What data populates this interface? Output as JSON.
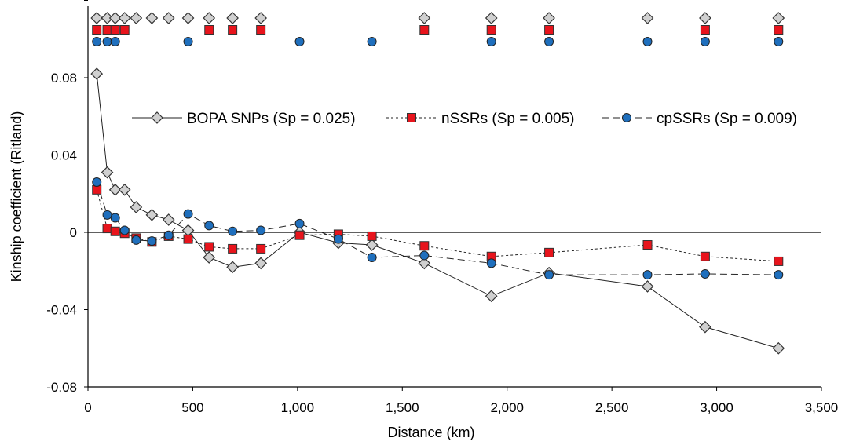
{
  "chart_data": {
    "type": "line",
    "xlabel": "Distance (km)",
    "ylabel": "Kinship coefficient (Ritland)",
    "xlim": [
      0,
      3500
    ],
    "ylim": [
      -0.08,
      0.12
    ],
    "x_ticks": [
      0,
      500,
      1000,
      1500,
      2000,
      2500,
      3000,
      3500
    ],
    "x_tick_labels": [
      "0",
      "500",
      "1,000",
      "1,500",
      "2,000",
      "2,500",
      "3,000",
      "3,500"
    ],
    "y_ticks": [
      -0.08,
      -0.04,
      0,
      0.04,
      0.08
    ],
    "y_tick_labels": [
      "-0.08",
      "-0.04",
      "0",
      "0.04",
      "0.08"
    ],
    "legend_position": "upper-right inside plot",
    "series": [
      {
        "name": "BOPA SNPs (Sp = 0.025)",
        "marker": "diamond",
        "line": "solid",
        "fill": "#d0d0d0",
        "x": [
          42,
          92,
          130,
          175,
          230,
          305,
          385,
          478,
          578,
          690,
          825,
          1010,
          1195,
          1355,
          1605,
          1925,
          2200,
          2670,
          2945,
          3295
        ],
        "y": [
          0.082,
          0.031,
          0.022,
          0.022,
          0.013,
          0.009,
          0.0065,
          0.001,
          -0.013,
          -0.018,
          -0.016,
          0.0,
          -0.0055,
          -0.0065,
          -0.016,
          -0.033,
          -0.021,
          -0.028,
          -0.049,
          -0.06
        ]
      },
      {
        "name": "nSSRs (Sp = 0.005)",
        "marker": "square",
        "line": "dotted",
        "fill": "#e8141c",
        "x": [
          42,
          92,
          130,
          175,
          230,
          305,
          385,
          478,
          578,
          690,
          825,
          1010,
          1195,
          1355,
          1605,
          1925,
          2200,
          2670,
          2945,
          3295
        ],
        "y": [
          0.022,
          0.002,
          0.0005,
          -0.0005,
          -0.003,
          -0.005,
          -0.002,
          -0.0035,
          -0.0075,
          -0.0085,
          -0.0085,
          -0.0015,
          -0.001,
          -0.002,
          -0.007,
          -0.0125,
          -0.0105,
          -0.0065,
          -0.0125,
          -0.015
        ]
      },
      {
        "name": "cpSSRs (Sp = 0.009)",
        "marker": "circle",
        "line": "dashed",
        "fill": "#1f6fbd",
        "x": [
          42,
          92,
          130,
          175,
          230,
          305,
          385,
          478,
          578,
          690,
          825,
          1010,
          1195,
          1355,
          1605,
          1925,
          2200,
          2670,
          2945,
          3295
        ],
        "y": [
          0.026,
          0.009,
          0.0075,
          0.001,
          -0.004,
          -0.0045,
          -0.0015,
          0.0095,
          0.0035,
          0.0005,
          0.001,
          0.0045,
          -0.0035,
          -0.013,
          -0.012,
          -0.016,
          -0.022,
          -0.022,
          -0.0215,
          -0.022
        ]
      }
    ],
    "significance_markers": {
      "diamond_x": [
        42,
        92,
        130,
        175,
        230,
        305,
        385,
        478,
        578,
        690,
        825,
        1605,
        1925,
        2200,
        2670,
        2945,
        3295
      ],
      "square_x": [
        42,
        92,
        130,
        175,
        578,
        690,
        825,
        1605,
        1925,
        2200,
        2945,
        3295
      ],
      "circle_x": [
        42,
        92,
        130,
        478,
        1010,
        1355,
        1925,
        2200,
        2670,
        2945,
        3295
      ]
    }
  }
}
